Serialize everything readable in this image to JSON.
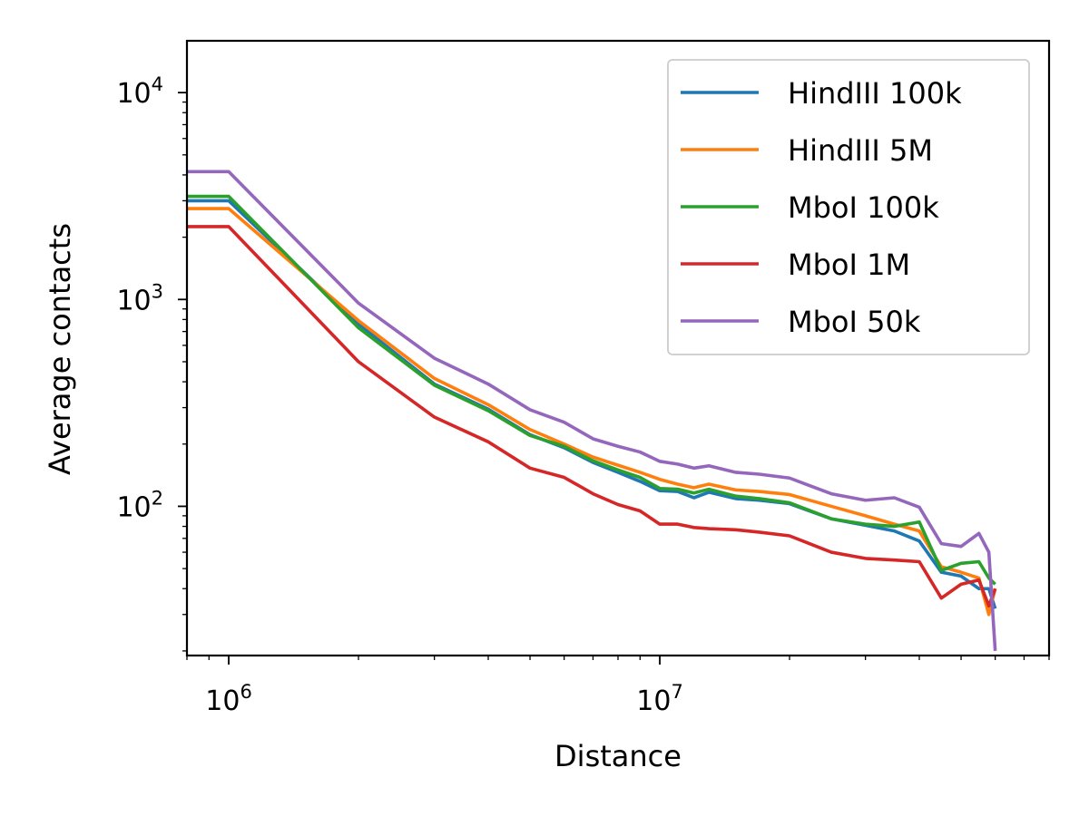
{
  "chart_data": {
    "type": "line",
    "title": "",
    "xlabel": "Distance",
    "ylabel": "Average contacts",
    "xscale": "log",
    "yscale": "log",
    "xlim": [
      800000,
      80000000
    ],
    "ylim": [
      19,
      17800
    ],
    "grid": false,
    "legend_position": "top-right",
    "x_ticks": [
      {
        "value": 1000000,
        "base": "10",
        "exp": "6"
      },
      {
        "value": 10000000,
        "base": "10",
        "exp": "7"
      }
    ],
    "y_ticks": [
      {
        "value": 100,
        "base": "10",
        "exp": "2"
      },
      {
        "value": 1000,
        "base": "10",
        "exp": "3"
      },
      {
        "value": 10000,
        "base": "10",
        "exp": "4"
      }
    ],
    "series": [
      {
        "name": "HindIII 100k",
        "color": "#1f77b4",
        "x": [
          800000,
          1000000,
          2000000,
          3000000,
          4000000,
          5000000,
          6000000,
          7000000,
          8000000,
          9000000,
          10000000,
          11000000,
          12000000,
          13000000,
          15000000,
          17000000,
          20000000,
          25000000,
          30000000,
          35000000,
          40000000,
          45000000,
          50000000,
          55000000,
          58000000,
          60000000
        ],
        "y": [
          3000,
          3000,
          760,
          390,
          295,
          222,
          192,
          163,
          146,
          132,
          119,
          118,
          110,
          117,
          109,
          107,
          103,
          87,
          81,
          76,
          68,
          48,
          46,
          40,
          40,
          32
        ]
      },
      {
        "name": "HindIII 5M",
        "color": "#ff7f0e",
        "x": [
          800000,
          1000000,
          2000000,
          3000000,
          4000000,
          5000000,
          6000000,
          7000000,
          8000000,
          9000000,
          10000000,
          11000000,
          12000000,
          13000000,
          15000000,
          17000000,
          20000000,
          25000000,
          30000000,
          35000000,
          40000000,
          45000000,
          50000000,
          55000000,
          58000000,
          60000000
        ],
        "y": [
          2750,
          2750,
          790,
          415,
          310,
          235,
          200,
          173,
          158,
          146,
          135,
          128,
          123,
          128,
          120,
          118,
          114,
          100,
          90,
          82,
          76,
          51,
          48,
          45,
          30,
          40
        ]
      },
      {
        "name": "MboI 100k",
        "color": "#2ca02c",
        "x": [
          800000,
          1000000,
          2000000,
          3000000,
          4000000,
          5000000,
          6000000,
          7000000,
          8000000,
          9000000,
          10000000,
          11000000,
          12000000,
          13000000,
          15000000,
          17000000,
          20000000,
          25000000,
          30000000,
          35000000,
          40000000,
          45000000,
          50000000,
          55000000,
          58000000,
          60000000
        ],
        "y": [
          3150,
          3150,
          730,
          385,
          290,
          220,
          195,
          166,
          150,
          138,
          122,
          121,
          116,
          121,
          112,
          109,
          104,
          87,
          82,
          80,
          84,
          49,
          53,
          54,
          45,
          42
        ]
      },
      {
        "name": "MboI 1M",
        "color": "#d62728",
        "x": [
          800000,
          1000000,
          2000000,
          3000000,
          4000000,
          5000000,
          6000000,
          7000000,
          8000000,
          9000000,
          10000000,
          11000000,
          12000000,
          13000000,
          15000000,
          17000000,
          20000000,
          25000000,
          30000000,
          35000000,
          40000000,
          45000000,
          50000000,
          55000000,
          58000000,
          60000000
        ],
        "y": [
          2250,
          2250,
          500,
          270,
          205,
          153,
          138,
          115,
          102,
          95,
          82,
          82,
          79,
          78,
          77,
          75,
          72,
          60,
          56,
          55,
          54,
          36,
          42,
          44,
          33,
          40
        ]
      },
      {
        "name": "MboI 50k",
        "color": "#9467bd",
        "x": [
          800000,
          1000000,
          2000000,
          3000000,
          4000000,
          5000000,
          6000000,
          7000000,
          8000000,
          9000000,
          10000000,
          11000000,
          12000000,
          13000000,
          15000000,
          17000000,
          20000000,
          25000000,
          30000000,
          35000000,
          40000000,
          45000000,
          50000000,
          55000000,
          58000000,
          60000000
        ],
        "y": [
          4150,
          4150,
          960,
          520,
          390,
          293,
          255,
          212,
          195,
          183,
          165,
          160,
          153,
          157,
          146,
          143,
          137,
          115,
          107,
          110,
          99,
          66,
          64,
          74,
          60,
          20
        ]
      }
    ]
  }
}
